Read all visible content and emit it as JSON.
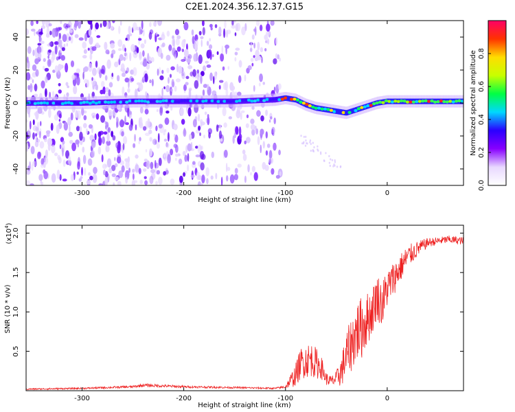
{
  "title": "C2E1.2024.356.12.37.G15",
  "chart_data": [
    {
      "type": "heatmap",
      "xlabel": "Height of straight line (km)",
      "ylabel": "Frequency (Hz)",
      "xlim": [
        -355,
        75
      ],
      "ylim": [
        -50,
        50
      ],
      "xticks": [
        -300,
        -200,
        -100,
        0
      ],
      "xtick_labels": [
        "-300",
        "-200",
        "-100",
        "0"
      ],
      "yticks": [
        -40,
        -20,
        0,
        20,
        40
      ],
      "ytick_labels": [
        "-40",
        "-20",
        "0",
        "20",
        "40"
      ],
      "grid": false,
      "colorbar": {
        "label": "Normalized spectral amplitude",
        "range": [
          0,
          1
        ],
        "ticks": [
          0.0,
          0.2,
          0.4,
          0.6,
          0.8
        ],
        "tick_labels": [
          "0.0",
          "0.2",
          "0.4",
          "0.6",
          "0.8"
        ],
        "colormap": [
          "#ffffff",
          "#e8d8ff",
          "#8800ff",
          "#2a00ff",
          "#00d8ff",
          "#00ff44",
          "#c8ff00",
          "#ffdd00",
          "#ff3300",
          "#ff0066"
        ]
      },
      "ridge": {
        "x": [
          -355,
          -300,
          -250,
          -200,
          -150,
          -110,
          -100,
          -90,
          -80,
          -70,
          -60,
          -50,
          -40,
          -30,
          -20,
          -10,
          0,
          10,
          20,
          40,
          60,
          75
        ],
        "y": [
          0,
          0,
          1,
          1,
          1,
          2,
          3,
          2,
          -1,
          -3,
          -4,
          -5,
          -6,
          -4,
          -2,
          0,
          1,
          1,
          1,
          1,
          1,
          1
        ]
      },
      "noise_region_x": [
        -355,
        -105
      ]
    },
    {
      "type": "line",
      "xlabel": "Height of straight line (km)",
      "ylabel": "SNR (10 * v/v)",
      "y_multiplier_label": "(x10",
      "y_multiplier_exp": "4",
      "y_multiplier_close": ")",
      "xlim": [
        -355,
        75
      ],
      "ylim": [
        0,
        2.1
      ],
      "xticks": [
        -300,
        -200,
        -100,
        0
      ],
      "xtick_labels": [
        "-300",
        "-200",
        "-100",
        "0"
      ],
      "yticks": [
        0.5,
        1.0,
        1.5,
        2.0
      ],
      "ytick_labels": [
        "0.5",
        "1.0",
        "1.5",
        "2.0"
      ],
      "grid": false,
      "series": [
        {
          "color": "#ee2222",
          "x": [
            -355,
            -300,
            -250,
            -240,
            -200,
            -150,
            -110,
            -100,
            -90,
            -85,
            -80,
            -75,
            -70,
            -65,
            -60,
            -55,
            -50,
            -45,
            -40,
            -35,
            -30,
            -25,
            -20,
            -15,
            -10,
            -5,
            0,
            10,
            20,
            30,
            40,
            50,
            60,
            75
          ],
          "y": [
            0.02,
            0.03,
            0.05,
            0.07,
            0.05,
            0.04,
            0.03,
            0.05,
            0.2,
            0.35,
            0.38,
            0.4,
            0.35,
            0.3,
            0.15,
            0.12,
            0.15,
            0.25,
            0.45,
            0.6,
            0.75,
            0.8,
            0.9,
            1.0,
            1.2,
            1.1,
            1.3,
            1.5,
            1.7,
            1.8,
            1.88,
            1.9,
            1.92,
            1.9
          ],
          "jitter": [
            0.01,
            0.01,
            0.015,
            0.02,
            0.015,
            0.012,
            0.01,
            0.02,
            0.15,
            0.2,
            0.22,
            0.22,
            0.2,
            0.15,
            0.08,
            0.07,
            0.1,
            0.2,
            0.3,
            0.35,
            0.4,
            0.4,
            0.35,
            0.3,
            0.3,
            0.3,
            0.25,
            0.2,
            0.15,
            0.1,
            0.06,
            0.05,
            0.05,
            0.05
          ]
        }
      ]
    }
  ]
}
